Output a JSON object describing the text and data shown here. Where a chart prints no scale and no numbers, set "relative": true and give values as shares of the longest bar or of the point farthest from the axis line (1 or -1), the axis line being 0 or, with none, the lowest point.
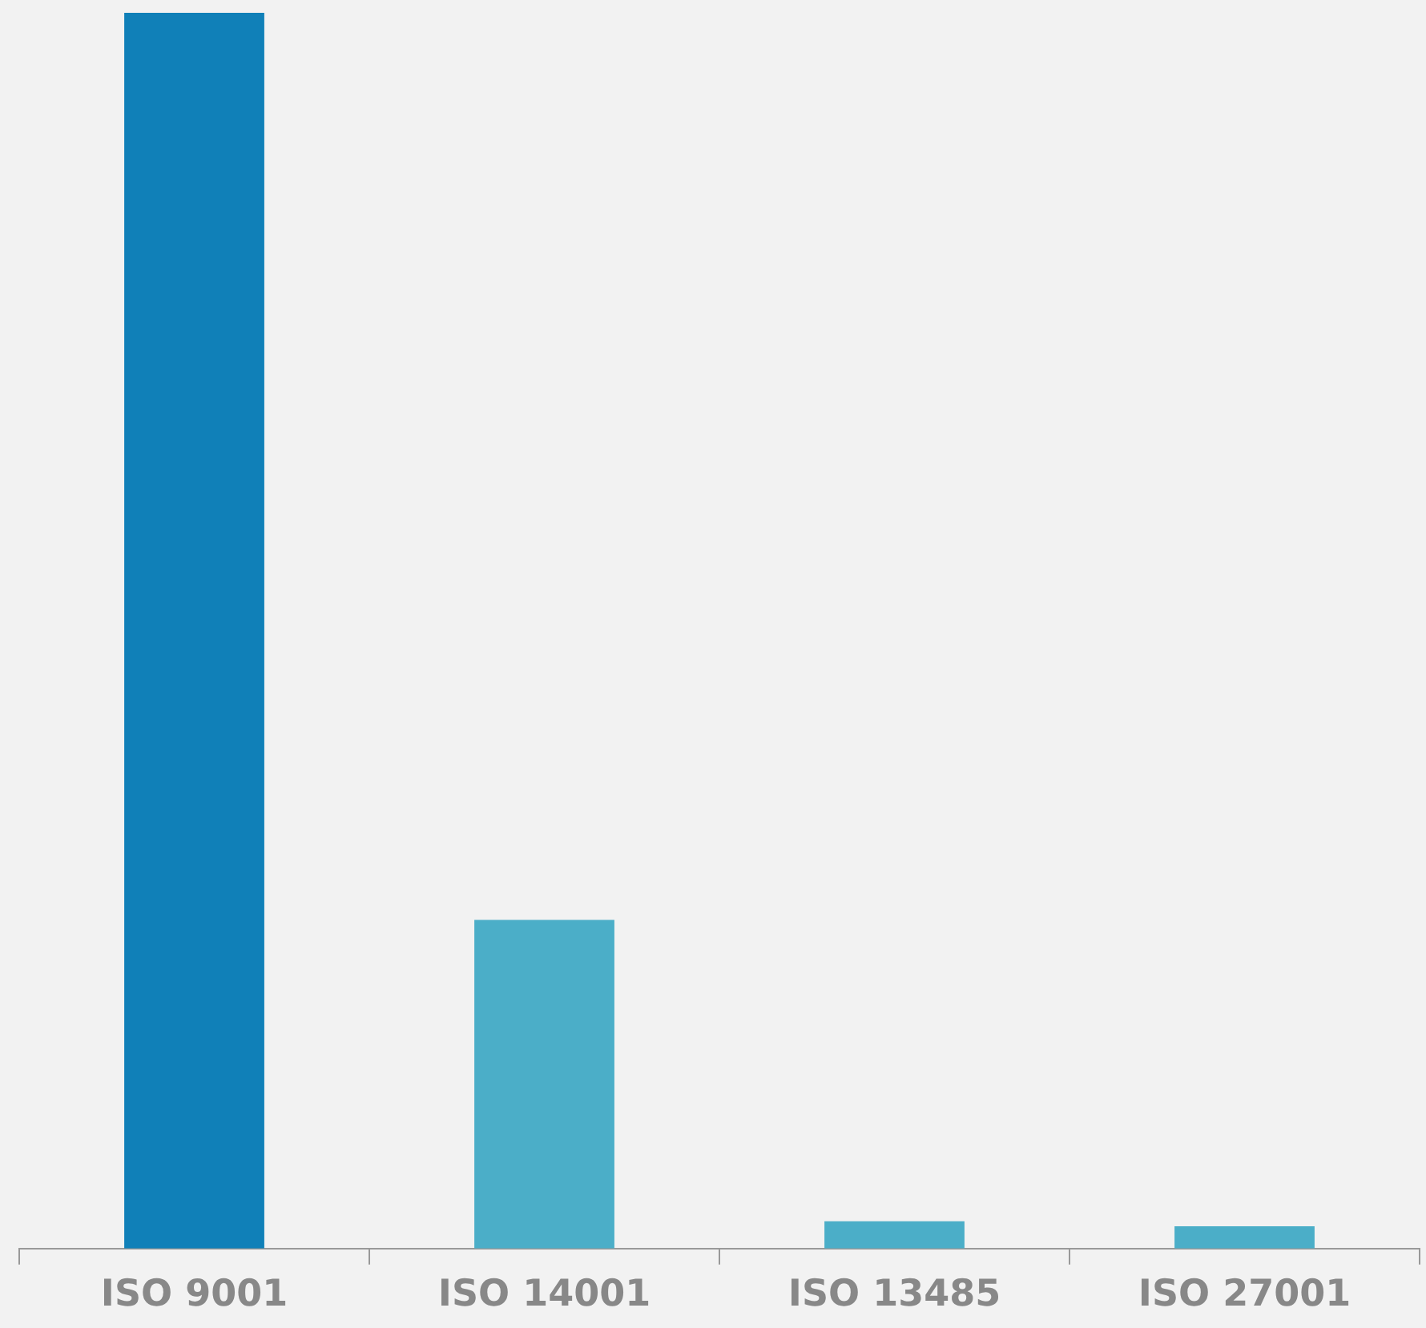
{
  "chart_data": {
    "type": "bar",
    "relative": true,
    "categories": [
      "ISO 9001",
      "ISO 14001",
      "ISO 13485",
      "ISO 27001"
    ],
    "values": [
      1,
      0.266,
      0.022,
      0.018
    ],
    "colors": [
      "#1080b8",
      "#4baec8",
      "#4baec8",
      "#4baec8"
    ],
    "grid": false,
    "legend": false
  }
}
